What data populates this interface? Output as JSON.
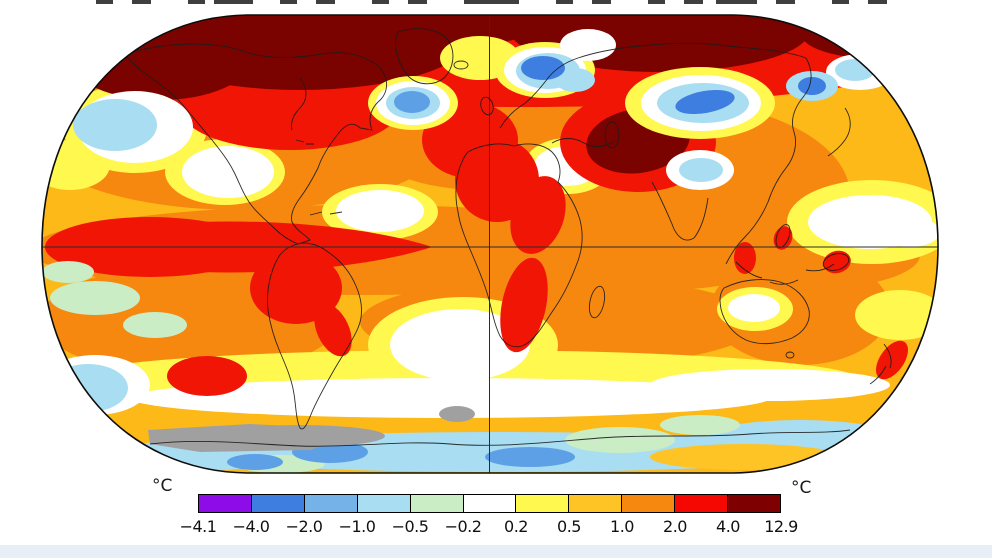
{
  "page": {
    "background": "#ffffff",
    "footer_strip_color": "#e8eef5",
    "top_cropped_text_visible": true
  },
  "legend": {
    "unit_left": "°C",
    "unit_right": "°C",
    "ticks": [
      "−4.1",
      "−4.0",
      "−2.0",
      "−1.0",
      "−0.5",
      "−0.2",
      "0.2",
      "0.5",
      "1.0",
      "2.0",
      "4.0",
      "12.9"
    ],
    "segments": [
      "#8e0ce8",
      "#3e7ee0",
      "#74b2e8",
      "#a9ddf2",
      "#cbedc6",
      "#ffffff",
      "#fff84f",
      "#fec324",
      "#f6870f",
      "#f50801",
      "#7e0000"
    ]
  },
  "map": {
    "projection": "Robinson world map",
    "outline_color": "#0d0d0d",
    "gridline_color": "#2b2b2b",
    "gridlines": [
      "equator",
      "prime-meridian"
    ],
    "no_data_color": "#a0a0a0",
    "base_color": "#fcb917"
  },
  "chart_data": {
    "type": "heatmap",
    "title": "",
    "unit": "°C",
    "legend_position": "bottom",
    "scale_breakpoints": [
      -4.1,
      -4.0,
      -2.0,
      -1.0,
      -0.5,
      -0.2,
      0.2,
      0.5,
      1.0,
      2.0,
      4.0,
      12.9
    ],
    "scale_colors": [
      "#8e0ce8",
      "#3e7ee0",
      "#74b2e8",
      "#a9ddf2",
      "#cbedc6",
      "#ffffff",
      "#fff84f",
      "#fec324",
      "#f6870f",
      "#f50801",
      "#7e0000"
    ],
    "notable_features": [
      {
        "region": "Arctic / northern high latitudes",
        "anomaly_c": "4.0 to 12.9"
      },
      {
        "region": "Central Asia (Kazakhstan) hotspot",
        "anomaly_c": "4.0 to 12.9"
      },
      {
        "region": "Alaska / northern Canada",
        "anomaly_c": "4.0 to 12.9"
      },
      {
        "region": "North Atlantic south of Greenland (Labrador Sea)",
        "anomaly_c": "-1.0 to -0.2"
      },
      {
        "region": "Scandinavia / Barents Sea",
        "anomaly_c": "-1.0 to -0.2"
      },
      {
        "region": "Central Siberia band",
        "anomaly_c": "-1.0 to -0.2"
      },
      {
        "region": "Kamchatka / Bering area",
        "anomaly_c": "-1.0 to -0.2"
      },
      {
        "region": "Equatorial eastern Pacific",
        "anomaly_c": "2.0 to 4.0"
      },
      {
        "region": "Iberia / North Africa",
        "anomaly_c": "2.0 to 4.0"
      },
      {
        "region": "Northern South America",
        "anomaly_c": "2.0 to 4.0"
      },
      {
        "region": "Southwestern Africa coast",
        "anomaly_c": "2.0 to 4.0"
      },
      {
        "region": "New Zealand",
        "anomaly_c": "2.0 to 4.0"
      },
      {
        "region": "Mid-latitude oceans",
        "anomaly_c": "0.5 to 2.0"
      },
      {
        "region": "Southern Ocean ring",
        "anomaly_c": "-0.2 to 0.2"
      },
      {
        "region": "Antarctic coast",
        "anomaly_c": "-1.0 to -0.2"
      },
      {
        "region": "Parts of Antarctica",
        "anomaly_c": "no data (gray)"
      }
    ]
  }
}
